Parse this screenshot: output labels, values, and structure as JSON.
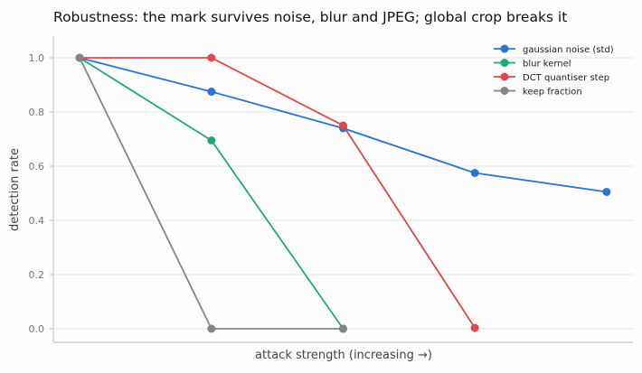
{
  "chart_data": {
    "type": "line",
    "title": "Robustness: the mark survives noise, blur and JPEG; global crop breaks it",
    "xlabel": "attack strength (increasing →)",
    "ylabel": "detection rate",
    "x": [
      0,
      1,
      2,
      3,
      4
    ],
    "xlim": [
      -0.2,
      4.2
    ],
    "ylim": [
      -0.05,
      1.08
    ],
    "yticks": [
      "0.0",
      "0.2",
      "0.4",
      "0.6",
      "0.8",
      "1.0"
    ],
    "grid": "horizontal",
    "legend_position": "top-right",
    "series": [
      {
        "name": "gaussian noise (std)",
        "color": "#2b74d0",
        "x": [
          0,
          1,
          2,
          3,
          4
        ],
        "values": [
          1.0,
          0.875,
          0.74,
          0.575,
          0.505
        ]
      },
      {
        "name": "blur kernel",
        "color": "#1daa7b",
        "x": [
          0,
          1,
          2
        ],
        "values": [
          1.0,
          0.695,
          0.0
        ]
      },
      {
        "name": "DCT quantiser step",
        "color": "#dd4848",
        "x": [
          0,
          1,
          2,
          3
        ],
        "values": [
          1.0,
          1.0,
          0.75,
          0.003
        ]
      },
      {
        "name": "keep fraction",
        "color": "#858585",
        "x": [
          0,
          1,
          2
        ],
        "values": [
          1.0,
          0.0,
          0.0
        ]
      }
    ]
  }
}
